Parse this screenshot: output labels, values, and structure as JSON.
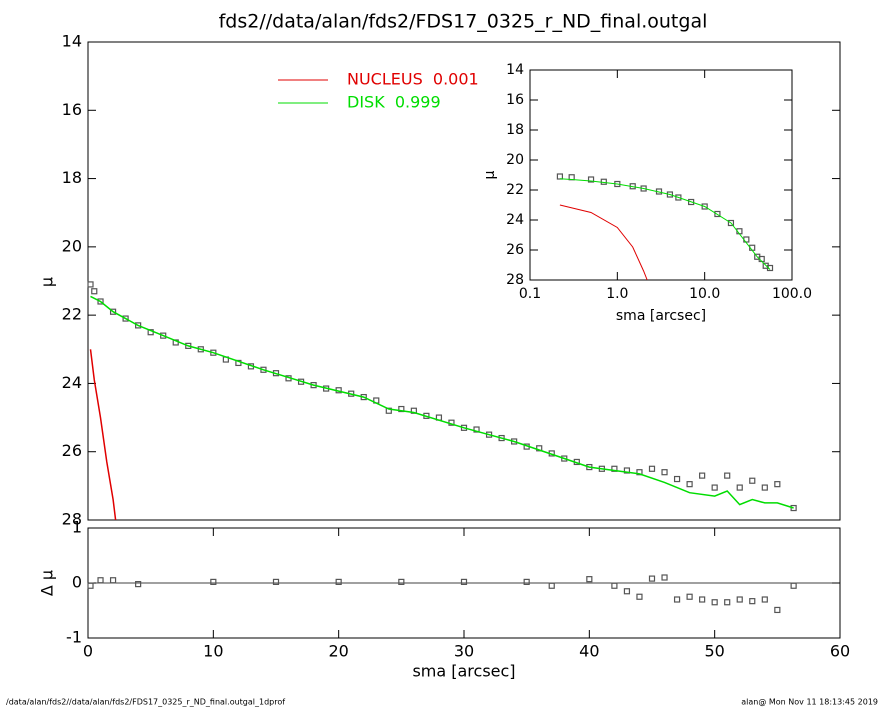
{
  "footer": {
    "left": "/data/alan/fds2//data/alan/fds2/FDS17_0325_r_ND_final.outgal_1dprof",
    "right": "alan@  Mon Nov 11 18:13:45 2019"
  },
  "chart_data": [
    {
      "type": "scatter",
      "title": "fds2//data/alan/fds2/FDS17_0325_r_ND_final.outgal",
      "ylabel": "μ",
      "xlim": [
        0,
        60
      ],
      "ylim": [
        14,
        28
      ],
      "y_inverted": true,
      "yticks": [
        14,
        16,
        18,
        20,
        22,
        24,
        26,
        28
      ],
      "series": [
        {
          "color": "#555555",
          "marker": "square",
          "x": [
            0.2,
            0.5,
            1,
            2,
            3,
            4,
            5,
            6,
            7,
            8,
            9,
            10,
            11,
            12,
            13,
            14,
            15,
            16,
            17,
            18,
            19,
            20,
            21,
            22,
            23,
            24,
            25,
            26,
            27,
            28,
            29,
            30,
            31,
            32,
            33,
            34,
            35,
            36,
            37,
            38,
            39,
            40,
            41,
            42,
            43,
            44,
            45,
            46,
            47,
            48,
            49,
            50,
            51,
            52,
            53,
            54,
            55,
            56.3
          ],
          "values": [
            21.1,
            21.3,
            21.6,
            21.9,
            22.1,
            22.3,
            22.5,
            22.6,
            22.8,
            22.9,
            23.0,
            23.1,
            23.3,
            23.4,
            23.5,
            23.6,
            23.7,
            23.85,
            23.95,
            24.05,
            24.15,
            24.2,
            24.3,
            24.4,
            24.5,
            24.8,
            24.75,
            24.8,
            24.95,
            25.0,
            25.15,
            25.3,
            25.35,
            25.5,
            25.6,
            25.7,
            25.85,
            25.9,
            26.05,
            26.2,
            26.3,
            26.45,
            26.5,
            26.5,
            26.55,
            26.6,
            26.5,
            26.6,
            26.8,
            26.95,
            26.7,
            27.05,
            26.7,
            27.05,
            26.85,
            27.05,
            26.95,
            27.65
          ]
        },
        {
          "name": "NUCLEUS  0.001",
          "color": "#e00000",
          "marker": "line",
          "x": [
            0.2,
            0.5,
            1,
            1.5,
            2,
            2.2
          ],
          "values": [
            23.0,
            23.9,
            25.0,
            26.3,
            27.4,
            28.0
          ]
        },
        {
          "name": "DISK  0.999",
          "color": "#00dd00",
          "marker": "line",
          "x": [
            0.2,
            1,
            2,
            4,
            6,
            8,
            10,
            14,
            18,
            22,
            24,
            26,
            30,
            34,
            38,
            40,
            42,
            44,
            46,
            48,
            50,
            51,
            52,
            53,
            54,
            55,
            56.3
          ],
          "values": [
            21.45,
            21.6,
            21.9,
            22.3,
            22.6,
            22.9,
            23.1,
            23.6,
            24.05,
            24.4,
            24.75,
            24.85,
            25.3,
            25.7,
            26.2,
            26.45,
            26.55,
            26.65,
            26.9,
            27.2,
            27.3,
            27.15,
            27.55,
            27.4,
            27.5,
            27.5,
            27.65
          ]
        }
      ]
    },
    {
      "type": "scatter",
      "ylabel": "Δ μ",
      "xlabel": "sma [arcsec]",
      "xlim": [
        0,
        60
      ],
      "xticks": [
        0,
        10,
        20,
        30,
        40,
        50,
        60
      ],
      "ylim": [
        -1,
        1
      ],
      "yticks": [
        -1,
        0,
        1
      ],
      "reference_line": 0,
      "series": [
        {
          "color": "#555555",
          "marker": "square",
          "x": [
            0.2,
            1,
            2,
            4,
            10,
            15,
            20,
            25,
            30,
            35,
            37,
            40,
            42,
            43,
            44,
            45,
            46,
            47,
            48,
            49,
            50,
            51,
            52,
            53,
            54,
            55,
            56.3
          ],
          "values": [
            -0.05,
            0.05,
            0.05,
            -0.02,
            0.02,
            0.02,
            0.02,
            0.02,
            0.02,
            0.02,
            -0.05,
            0.07,
            -0.05,
            -0.15,
            -0.25,
            0.08,
            0.1,
            -0.3,
            -0.25,
            -0.3,
            -0.35,
            -0.35,
            -0.3,
            -0.33,
            -0.3,
            -0.49,
            -0.05
          ]
        }
      ]
    },
    {
      "type": "scatter",
      "ylabel": "μ",
      "xlabel": "sma [arcsec]",
      "xlog": true,
      "xlim": [
        0.1,
        100
      ],
      "xticks": [
        0.1,
        {
          "value": 1,
          "label": "1.0"
        },
        {
          "value": 10,
          "label": "10.0"
        },
        {
          "value": 100,
          "label": "100.0"
        }
      ],
      "ylim": [
        14,
        28
      ],
      "y_inverted": true,
      "yticks": [
        14,
        16,
        18,
        20,
        22,
        24,
        26,
        28
      ],
      "series": [
        {
          "color": "#555555",
          "marker": "square",
          "x": [
            0.22,
            0.3,
            0.5,
            0.7,
            1,
            1.5,
            2,
            3,
            4,
            5,
            7,
            10,
            14,
            20,
            25,
            30,
            35,
            40,
            45,
            50,
            56
          ],
          "values": [
            21.1,
            21.15,
            21.3,
            21.45,
            21.6,
            21.75,
            21.9,
            22.1,
            22.3,
            22.5,
            22.8,
            23.1,
            23.6,
            24.2,
            24.75,
            25.3,
            25.85,
            26.45,
            26.6,
            27.05,
            27.2
          ]
        },
        {
          "color": "#e00000",
          "marker": "line",
          "x": [
            0.22,
            0.5,
            1,
            1.5,
            2,
            2.2
          ],
          "values": [
            23.0,
            23.5,
            24.5,
            25.8,
            27.4,
            28.0
          ]
        },
        {
          "color": "#00dd00",
          "marker": "line",
          "x": [
            0.22,
            0.3,
            0.5,
            1,
            2,
            4,
            10,
            20,
            40,
            56
          ],
          "values": [
            21.25,
            21.3,
            21.4,
            21.6,
            21.9,
            22.3,
            23.1,
            24.2,
            26.45,
            27.3
          ]
        }
      ]
    }
  ]
}
